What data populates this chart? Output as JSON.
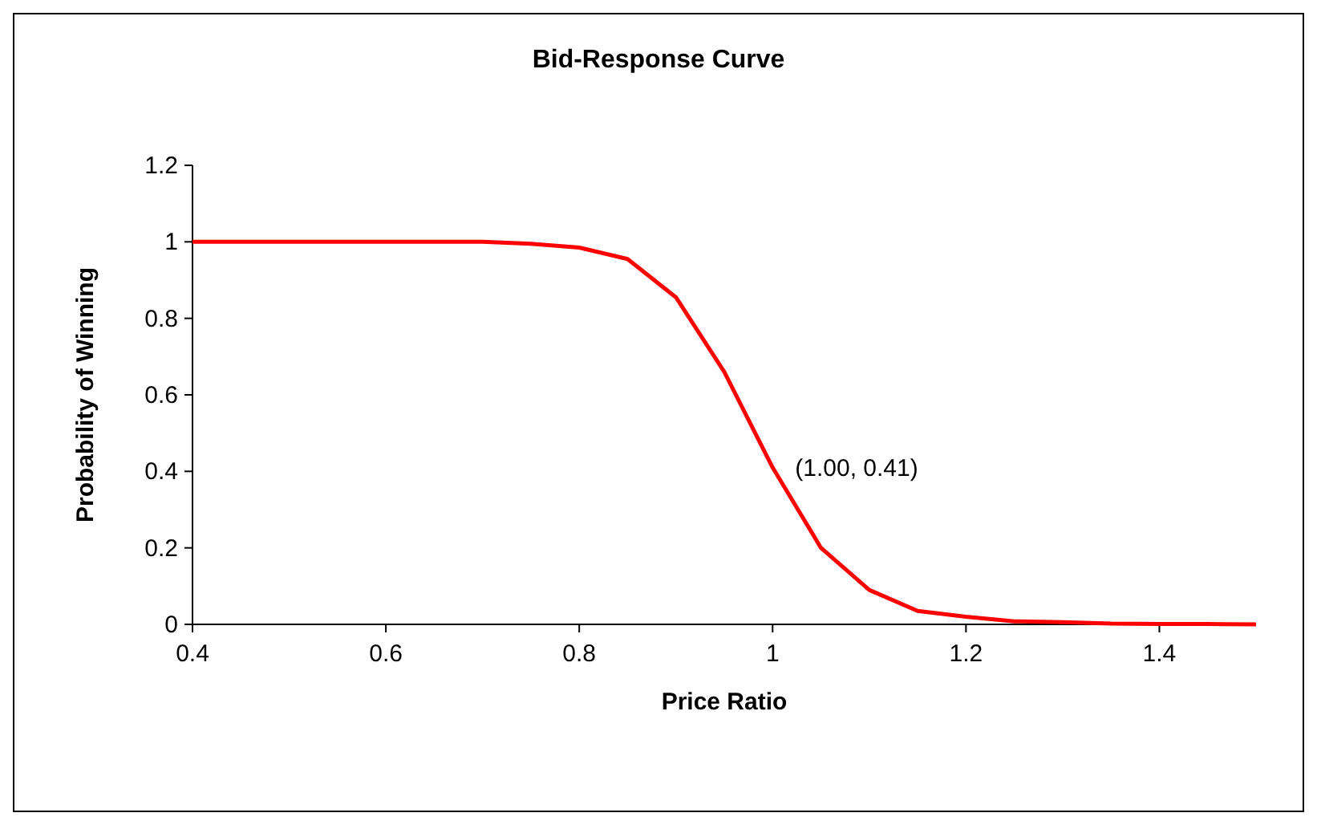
{
  "chart_data": {
    "type": "line",
    "title": "Bid-Response Curve",
    "xlabel": "Price Ratio",
    "ylabel": "Probability of Winning",
    "x": [
      0.4,
      0.45,
      0.5,
      0.55,
      0.6,
      0.65,
      0.7,
      0.75,
      0.8,
      0.85,
      0.9,
      0.95,
      1.0,
      1.05,
      1.1,
      1.15,
      1.2,
      1.25,
      1.3,
      1.35,
      1.4,
      1.45,
      1.5
    ],
    "series": [
      {
        "color": "#ff0000",
        "values": [
          1,
          1,
          1,
          1,
          1,
          1,
          1,
          0.995,
          0.985,
          0.955,
          0.855,
          0.66,
          0.41,
          0.2,
          0.09,
          0.035,
          0.02,
          0.008,
          0.006,
          0.002,
          0.001,
          0.001,
          0
        ]
      }
    ],
    "xlim": [
      0.4,
      1.5
    ],
    "xticks": [
      0.4,
      0.6,
      0.8,
      1,
      1.2,
      1.4
    ],
    "ylim": [
      0,
      1.2
    ],
    "yticks": [
      0,
      0.2,
      0.4,
      0.6,
      0.8,
      1,
      1.2
    ],
    "annotations": [
      {
        "text": "(1.00, 0.41)",
        "x": 1.0,
        "y": 0.41
      }
    ],
    "grid": false,
    "marker": "none",
    "line_style": "solid"
  }
}
